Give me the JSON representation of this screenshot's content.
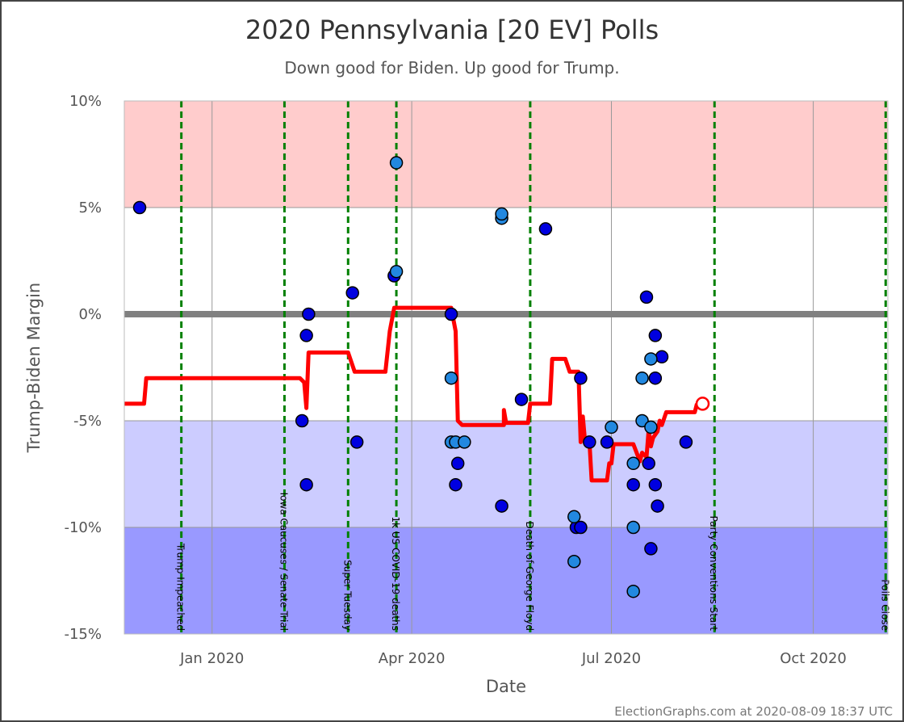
{
  "chart_data": {
    "type": "scatter",
    "title": "2020 Pennsylvania [20 EV] Polls",
    "subtitle": "Down good for Biden. Up good for Trump.",
    "xlabel": "Date",
    "ylabel": "Trump-Biden Margin",
    "footer": "ElectionGraphs.com at 2020-08-09 18:37 UTC",
    "xlim": [
      "2019-11-22",
      "2020-11-04"
    ],
    "ylim": [
      -15,
      10
    ],
    "y_ticks": [
      {
        "value": 10,
        "label": "10%"
      },
      {
        "value": 5,
        "label": "5%"
      },
      {
        "value": 0,
        "label": "0%"
      },
      {
        "value": -5,
        "label": "-5%"
      },
      {
        "value": -10,
        "label": "-10%"
      },
      {
        "value": -15,
        "label": "-15%"
      }
    ],
    "x_ticks": [
      {
        "date": "2020-01-01",
        "label": "Jan 2020"
      },
      {
        "date": "2020-04-01",
        "label": "Apr 2020"
      },
      {
        "date": "2020-07-01",
        "label": "Jul 2020"
      },
      {
        "date": "2020-10-01",
        "label": "Oct 2020"
      }
    ],
    "bands": [
      {
        "from": 5,
        "to": 10,
        "color": "#ffcccc"
      },
      {
        "from": -10,
        "to": -5,
        "color": "#ccccff"
      },
      {
        "from": -15,
        "to": -10,
        "color": "#9999ff"
      }
    ],
    "zero_line_color": "#808080",
    "events": [
      {
        "date": "2019-12-18",
        "label": "Trump Impeached"
      },
      {
        "date": "2020-02-03",
        "label": "Iowa Caucuses / Senate Trial"
      },
      {
        "date": "2020-03-03",
        "label": "Super Tuesday"
      },
      {
        "date": "2020-03-25",
        "label": "1k US COVID-19 deaths"
      },
      {
        "date": "2020-05-25",
        "label": "Death of George Floyd"
      },
      {
        "date": "2020-08-17",
        "label": "Party Conventions Start"
      },
      {
        "date": "2020-11-03",
        "label": "Polls Close"
      }
    ],
    "event_color": "#008000",
    "series": [
      {
        "style": "dark",
        "color": "#0000e0",
        "points": [
          [
            "2019-11-29",
            5
          ],
          [
            "2020-02-11",
            -5
          ],
          [
            "2020-02-13",
            -1
          ],
          [
            "2020-02-14",
            0
          ],
          [
            "2020-02-13",
            -8
          ],
          [
            "2020-03-05",
            1
          ],
          [
            "2020-03-07",
            -6
          ],
          [
            "2020-03-24",
            1.8
          ],
          [
            "2020-04-19",
            0
          ],
          [
            "2020-04-21",
            -8
          ],
          [
            "2020-04-22",
            -7
          ],
          [
            "2020-05-12",
            -9
          ],
          [
            "2020-05-21",
            -4
          ],
          [
            "2020-06-01",
            4
          ],
          [
            "2020-06-17",
            -3
          ],
          [
            "2020-06-15",
            -10
          ],
          [
            "2020-06-17",
            -10
          ],
          [
            "2020-06-21",
            -6
          ],
          [
            "2020-06-29",
            -6
          ],
          [
            "2020-07-11",
            -8
          ],
          [
            "2020-07-17",
            0.8
          ],
          [
            "2020-07-18",
            -7
          ],
          [
            "2020-07-19",
            -11
          ],
          [
            "2020-07-21",
            -1
          ],
          [
            "2020-07-21",
            -3
          ],
          [
            "2020-07-21",
            -8
          ],
          [
            "2020-07-22",
            -9
          ],
          [
            "2020-07-24",
            -2
          ],
          [
            "2020-08-04",
            -6
          ]
        ]
      },
      {
        "style": "light",
        "color": "#2288e0",
        "points": [
          [
            "2020-03-25",
            7.1
          ],
          [
            "2020-03-25",
            2
          ],
          [
            "2020-04-19",
            -3
          ],
          [
            "2020-04-19",
            -6
          ],
          [
            "2020-04-21",
            -6
          ],
          [
            "2020-04-25",
            -6
          ],
          [
            "2020-05-12",
            4.5
          ],
          [
            "2020-05-12",
            4.7
          ],
          [
            "2020-06-14",
            -9.5
          ],
          [
            "2020-06-14",
            -11.6
          ],
          [
            "2020-07-01",
            -5.3
          ],
          [
            "2020-07-11",
            -7
          ],
          [
            "2020-07-11",
            -10
          ],
          [
            "2020-07-11",
            -13
          ],
          [
            "2020-07-15",
            -3
          ],
          [
            "2020-07-15",
            -5
          ],
          [
            "2020-07-19",
            -2.1
          ],
          [
            "2020-07-19",
            -5.3
          ]
        ]
      }
    ],
    "average_line": {
      "color": "#ff0000",
      "end_marker": "open-circle",
      "points": [
        [
          "2019-11-22",
          -4.2
        ],
        [
          "2019-12-01",
          -4.2
        ],
        [
          "2019-12-02",
          -3
        ],
        [
          "2020-02-10",
          -3
        ],
        [
          "2020-02-12",
          -3.2
        ],
        [
          "2020-02-13",
          -4.4
        ],
        [
          "2020-02-14",
          -1.8
        ],
        [
          "2020-03-03",
          -1.8
        ],
        [
          "2020-03-06",
          -2.7
        ],
        [
          "2020-03-20",
          -2.7
        ],
        [
          "2020-03-22",
          -0.8
        ],
        [
          "2020-03-24",
          0.3
        ],
        [
          "2020-04-19",
          0.3
        ],
        [
          "2020-04-21",
          -0.8
        ],
        [
          "2020-04-22",
          -5
        ],
        [
          "2020-04-24",
          -5.2
        ],
        [
          "2020-05-13",
          -5.2
        ],
        [
          "2020-05-13",
          -4.5
        ],
        [
          "2020-05-14",
          -5.1
        ],
        [
          "2020-05-24",
          -5.1
        ],
        [
          "2020-05-25",
          -4.2
        ],
        [
          "2020-06-03",
          -4.2
        ],
        [
          "2020-06-04",
          -2.1
        ],
        [
          "2020-06-10",
          -2.1
        ],
        [
          "2020-06-12",
          -2.7
        ],
        [
          "2020-06-16",
          -2.7
        ],
        [
          "2020-06-17",
          -6
        ],
        [
          "2020-06-18",
          -4.8
        ],
        [
          "2020-06-19",
          -6
        ],
        [
          "2020-06-21",
          -6
        ],
        [
          "2020-06-22",
          -7.8
        ],
        [
          "2020-06-29",
          -7.8
        ],
        [
          "2020-06-30",
          -7
        ],
        [
          "2020-07-01",
          -7
        ],
        [
          "2020-07-02",
          -6.1
        ],
        [
          "2020-07-11",
          -6.1
        ],
        [
          "2020-07-14",
          -6.9
        ],
        [
          "2020-07-15",
          -6.5
        ],
        [
          "2020-07-17",
          -6.7
        ],
        [
          "2020-07-18",
          -5.4
        ],
        [
          "2020-07-19",
          -6.2
        ],
        [
          "2020-07-20",
          -5.8
        ],
        [
          "2020-07-22",
          -5.5
        ],
        [
          "2020-07-23",
          -5.0
        ],
        [
          "2020-07-24",
          -5.2
        ],
        [
          "2020-07-26",
          -4.6
        ],
        [
          "2020-08-08",
          -4.6
        ],
        [
          "2020-08-09",
          -4.2
        ]
      ]
    }
  }
}
